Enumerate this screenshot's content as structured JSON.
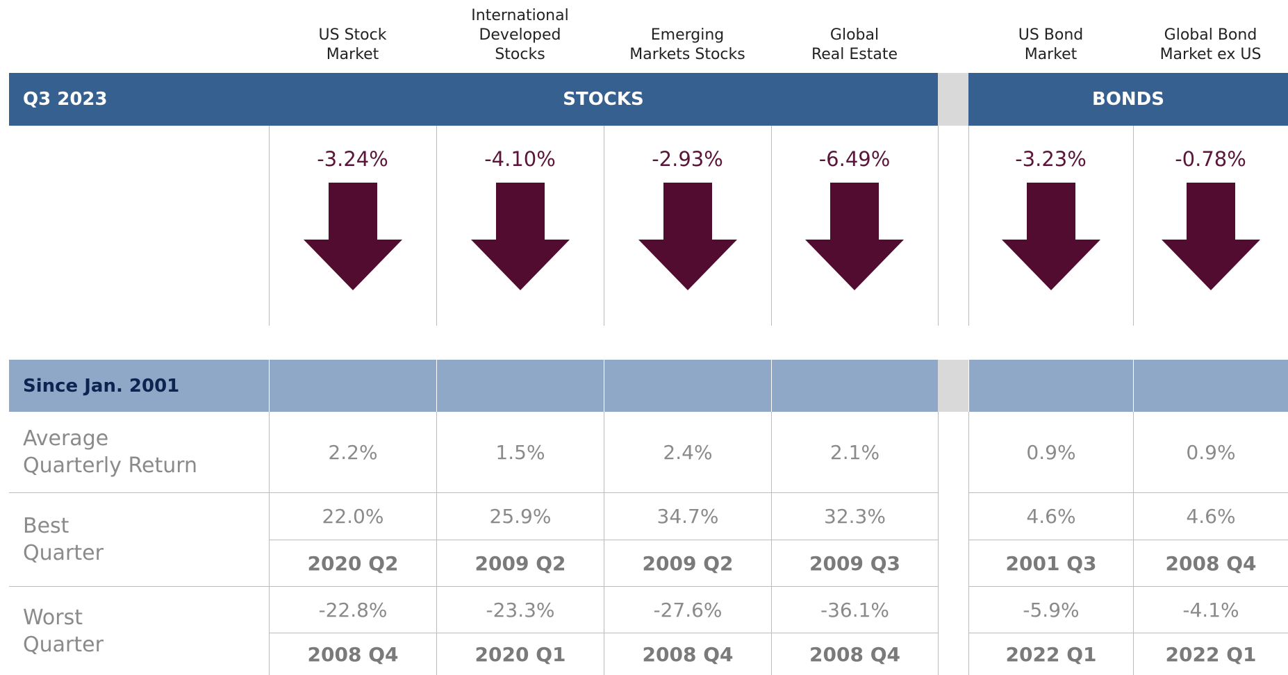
{
  "header": {
    "period": "Q3 2023",
    "stocks": "STOCKS",
    "bonds": "BONDS",
    "since": "Since Jan. 2001"
  },
  "row_labels": {
    "average": [
      "Average",
      "Quarterly Return"
    ],
    "best": [
      "Best",
      "Quarter"
    ],
    "worst": [
      "Worst",
      "Quarter"
    ]
  },
  "columns": [
    {
      "name": [
        "US Stock",
        "Market"
      ],
      "return": "-3.24%",
      "average": "2.2%",
      "best": "22.0%",
      "best_quarter": "2020 Q2",
      "worst": "-22.8%",
      "worst_quarter": "2008 Q4"
    },
    {
      "name": [
        "International",
        "Developed",
        "Stocks"
      ],
      "return": "-4.10%",
      "average": "1.5%",
      "best": "25.9%",
      "best_quarter": "2009 Q2",
      "worst": "-23.3%",
      "worst_quarter": "2020 Q1"
    },
    {
      "name": [
        "Emerging",
        "Markets Stocks"
      ],
      "return": "-2.93%",
      "average": "2.4%",
      "best": "34.7%",
      "best_quarter": "2009 Q2",
      "worst": "-27.6%",
      "worst_quarter": "2008 Q4"
    },
    {
      "name": [
        "Global",
        "Real Estate"
      ],
      "return": "-6.49%",
      "average": "2.1%",
      "best": "32.3%",
      "best_quarter": "2009 Q3",
      "worst": "-36.1%",
      "worst_quarter": "2008 Q4"
    },
    {
      "name": [
        "US Bond",
        "Market"
      ],
      "return": "-3.23%",
      "average": "0.9%",
      "best": "4.6%",
      "best_quarter": "2001 Q3",
      "worst": "-5.9%",
      "worst_quarter": "2022 Q1"
    },
    {
      "name": [
        "Global Bond",
        "Market ex US"
      ],
      "return": "-0.78%",
      "average": "0.9%",
      "best": "4.6%",
      "best_quarter": "2008 Q4",
      "worst": "-4.1%",
      "worst_quarter": "2022 Q1"
    }
  ]
}
